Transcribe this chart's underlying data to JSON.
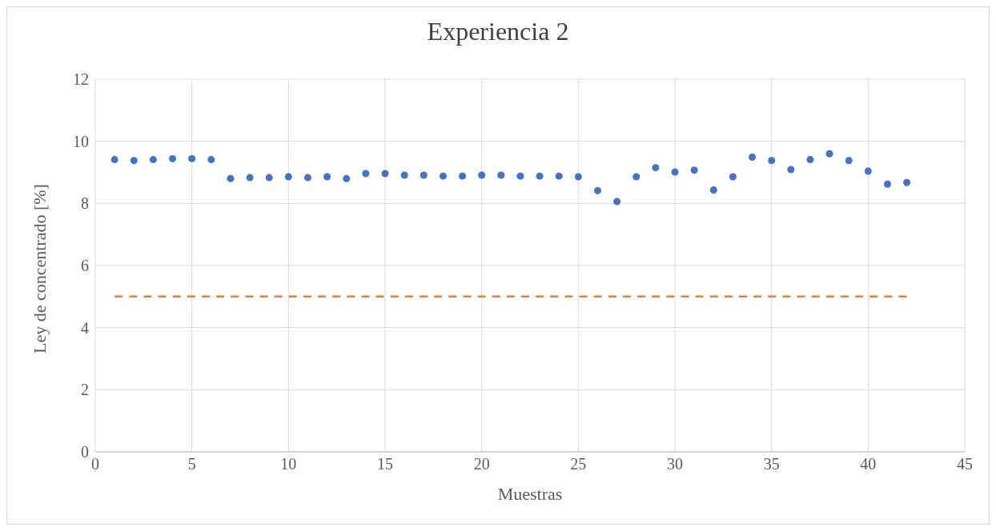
{
  "chart_data": {
    "type": "scatter",
    "title": "Experiencia 2",
    "xlabel": "Muestras",
    "ylabel": "Ley de concentrado [%]",
    "xlim": [
      0,
      45
    ],
    "xticks": [
      0,
      5,
      10,
      15,
      20,
      25,
      30,
      35,
      40,
      45
    ],
    "ylim": [
      0,
      12
    ],
    "yticks": [
      0,
      2,
      4,
      6,
      8,
      10,
      12
    ],
    "grid": true,
    "marker": "circle",
    "series": [
      {
        "color": "#4472c4",
        "x": [
          1,
          2,
          3,
          4,
          5,
          6,
          7,
          8,
          9,
          10,
          11,
          12,
          13,
          14,
          15,
          16,
          17,
          18,
          19,
          20,
          21,
          22,
          23,
          24,
          25,
          26,
          27,
          28,
          29,
          30,
          31,
          32,
          33,
          34,
          35,
          36,
          37,
          38,
          39,
          40,
          41,
          42
        ],
        "values": [
          9.41,
          9.38,
          9.41,
          9.44,
          9.44,
          9.41,
          8.8,
          8.83,
          8.83,
          8.86,
          8.83,
          8.86,
          8.8,
          8.96,
          8.96,
          8.91,
          8.91,
          8.88,
          8.88,
          8.91,
          8.91,
          8.88,
          8.88,
          8.88,
          8.86,
          8.41,
          8.06,
          8.86,
          9.15,
          9.01,
          9.07,
          8.43,
          8.86,
          9.49,
          9.38,
          9.09,
          9.41,
          9.6,
          9.38,
          9.04,
          8.62,
          8.67
        ]
      },
      {
        "type": "line",
        "color": "#ed7d31",
        "line_style": "dashed",
        "marker": "none",
        "x": [
          1,
          42
        ],
        "values": [
          5,
          5
        ]
      }
    ]
  }
}
